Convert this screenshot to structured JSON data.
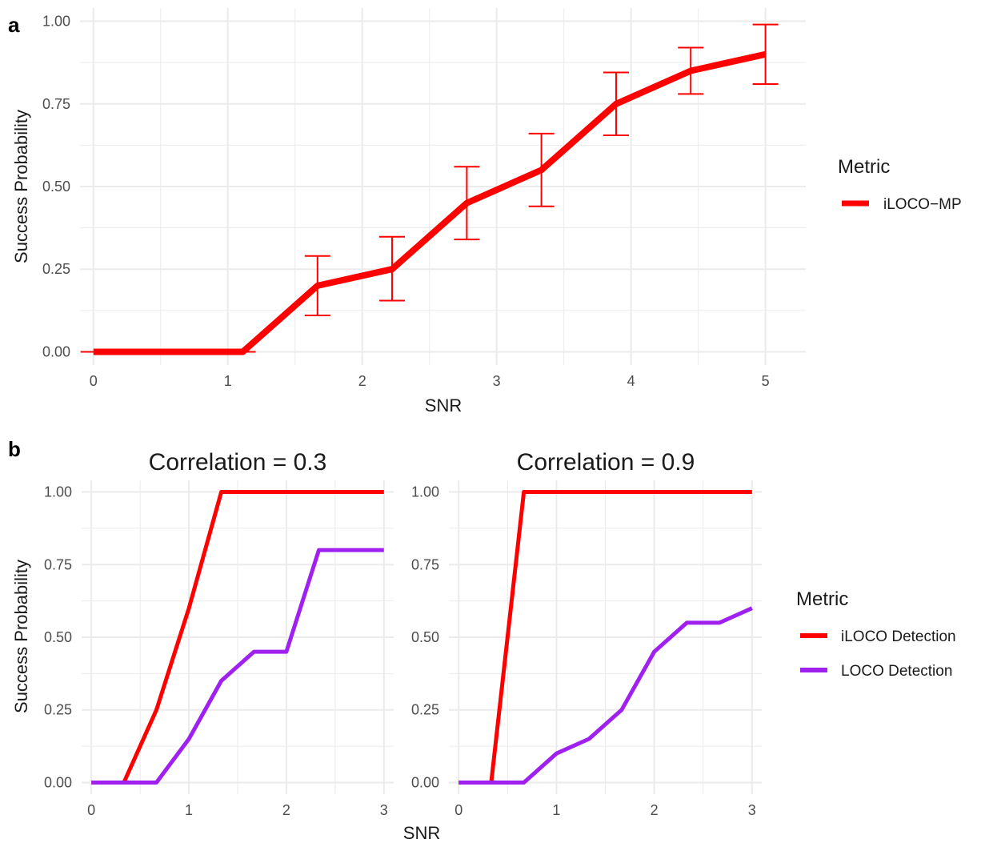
{
  "panel_a": {
    "tag": "a",
    "legend_title": "Metric",
    "legend_labels": [
      "iLOCO−MP"
    ]
  },
  "panel_b": {
    "tag": "b",
    "legend_title": "Metric",
    "legend_labels": [
      "iLOCO Detection",
      "LOCO Detection"
    ]
  },
  "colors": {
    "ilococ": "#ff0000",
    "loco": "#a020f0"
  },
  "chart_data": [
    {
      "type": "line",
      "xlabel": "SNR",
      "ylabel": "Success Probability",
      "xlim": [
        -0.1,
        5.3
      ],
      "ylim": [
        -0.04,
        1.04
      ],
      "x_ticks": [
        "0",
        "1",
        "2",
        "3",
        "4",
        "5"
      ],
      "y_ticks": [
        "0.00",
        "0.25",
        "0.50",
        "0.75",
        "1.00"
      ],
      "grid": true,
      "legend": "right",
      "series": [
        {
          "name": "iLOCO−MP",
          "color": "#ff0000",
          "x": [
            0,
            0.556,
            1.111,
            1.667,
            2.222,
            2.778,
            3.333,
            3.889,
            4.444,
            5.0
          ],
          "y": [
            0,
            0,
            0,
            0.2,
            0.25,
            0.45,
            0.55,
            0.75,
            0.85,
            0.9
          ],
          "err_low": [
            0,
            0,
            0,
            0.11,
            0.155,
            0.34,
            0.44,
            0.655,
            0.78,
            0.81
          ],
          "err_high": [
            0,
            0,
            0,
            0.29,
            0.348,
            0.56,
            0.66,
            0.845,
            0.92,
            0.99
          ]
        }
      ]
    },
    {
      "type": "line",
      "title": "Correlation = 0.3",
      "xlabel": "SNR",
      "ylabel": "Success Probability",
      "xlim": [
        -0.1,
        3.1
      ],
      "ylim": [
        -0.04,
        1.04
      ],
      "x_ticks": [
        "0",
        "1",
        "2",
        "3"
      ],
      "y_ticks": [
        "0.00",
        "0.25",
        "0.50",
        "0.75",
        "1.00"
      ],
      "grid": true,
      "legend": "right",
      "series": [
        {
          "name": "iLOCO Detection",
          "color": "#ff0000",
          "x": [
            0,
            0.333,
            0.667,
            1.0,
            1.333,
            1.667,
            2.0,
            2.333,
            2.667,
            3.0
          ],
          "y": [
            0,
            0,
            0.25,
            0.6,
            1.0,
            1.0,
            1.0,
            1.0,
            1.0,
            1.0
          ]
        },
        {
          "name": "LOCO Detection",
          "color": "#a020f0",
          "x": [
            0,
            0.333,
            0.667,
            1.0,
            1.333,
            1.667,
            2.0,
            2.333,
            2.667,
            3.0
          ],
          "y": [
            0,
            0,
            0,
            0.15,
            0.35,
            0.45,
            0.45,
            0.8,
            0.8,
            0.8
          ]
        }
      ]
    },
    {
      "type": "line",
      "title": "Correlation = 0.9",
      "xlabel": "SNR",
      "ylabel": "Success Probability",
      "xlim": [
        -0.1,
        3.1
      ],
      "ylim": [
        -0.04,
        1.04
      ],
      "x_ticks": [
        "0",
        "1",
        "2",
        "3"
      ],
      "y_ticks": [
        "0.00",
        "0.25",
        "0.50",
        "0.75",
        "1.00"
      ],
      "grid": true,
      "legend": "right",
      "series": [
        {
          "name": "iLOCO Detection",
          "color": "#ff0000",
          "x": [
            0,
            0.333,
            0.667,
            1.0,
            1.333,
            1.667,
            2.0,
            2.333,
            2.667,
            3.0
          ],
          "y": [
            0,
            0,
            1.0,
            1.0,
            1.0,
            1.0,
            1.0,
            1.0,
            1.0,
            1.0
          ]
        },
        {
          "name": "LOCO Detection",
          "color": "#a020f0",
          "x": [
            0,
            0.333,
            0.667,
            1.0,
            1.333,
            1.667,
            2.0,
            2.333,
            2.667,
            3.0
          ],
          "y": [
            0,
            0,
            0,
            0.1,
            0.15,
            0.25,
            0.45,
            0.55,
            0.55,
            0.6
          ]
        }
      ]
    }
  ]
}
